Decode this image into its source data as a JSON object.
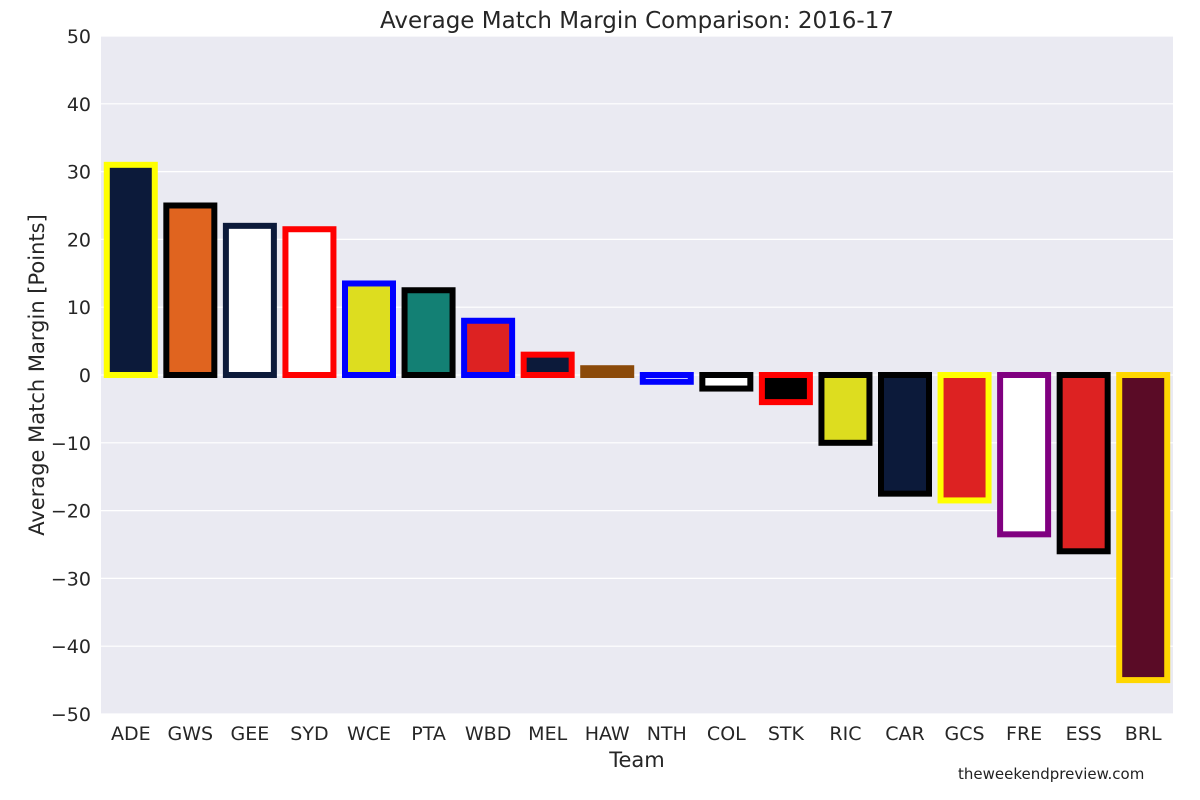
{
  "chart_data": {
    "type": "bar",
    "title": "Average Match Margin Comparison: 2016-17",
    "xlabel": "Team",
    "ylabel": "Average Match Margin [Points]",
    "ylim": [
      -50,
      50
    ],
    "yticks": [
      50,
      40,
      30,
      20,
      10,
      0,
      -10,
      -20,
      -30,
      -40,
      -50
    ],
    "ytick_labels": [
      "50",
      "40",
      "30",
      "20",
      "10",
      "0",
      "−10",
      "−20",
      "−30",
      "−40",
      "−50"
    ],
    "grid": true,
    "background": "#eaeaf2",
    "categories": [
      "ADE",
      "GWS",
      "GEE",
      "SYD",
      "WCE",
      "PTA",
      "WBD",
      "MEL",
      "HAW",
      "NTH",
      "COL",
      "STK",
      "RIC",
      "CAR",
      "GCS",
      "FRE",
      "ESS",
      "BRL"
    ],
    "values": [
      31,
      25,
      22,
      21.5,
      13.5,
      12.5,
      8,
      3,
      1,
      -1,
      -2,
      -4,
      -10,
      -17.5,
      -18.5,
      -23.5,
      -26,
      -45
    ],
    "fill_colors": [
      "#0c1a3a",
      "#e0641f",
      "#ffffff",
      "#ffffff",
      "#dddd1f",
      "#138074",
      "#dd2222",
      "#0c1a3a",
      "#8b4a0a",
      "#ffffff",
      "#ffffff",
      "#000000",
      "#dddd1f",
      "#0c1a3a",
      "#dd2222",
      "#ffffff",
      "#dd2222",
      "#5a0b26"
    ],
    "edge_colors": [
      "#ffff00",
      "#000000",
      "#0c1a3a",
      "#ff0000",
      "#0000ff",
      "#000000",
      "#0000ff",
      "#ff0000",
      "#8b4a0a",
      "#0000ff",
      "#000000",
      "#ff0000",
      "#000000",
      "#000000",
      "#ffff00",
      "#800080",
      "#000000",
      "#ffd700"
    ]
  },
  "watermark": "theweekendpreview.com"
}
